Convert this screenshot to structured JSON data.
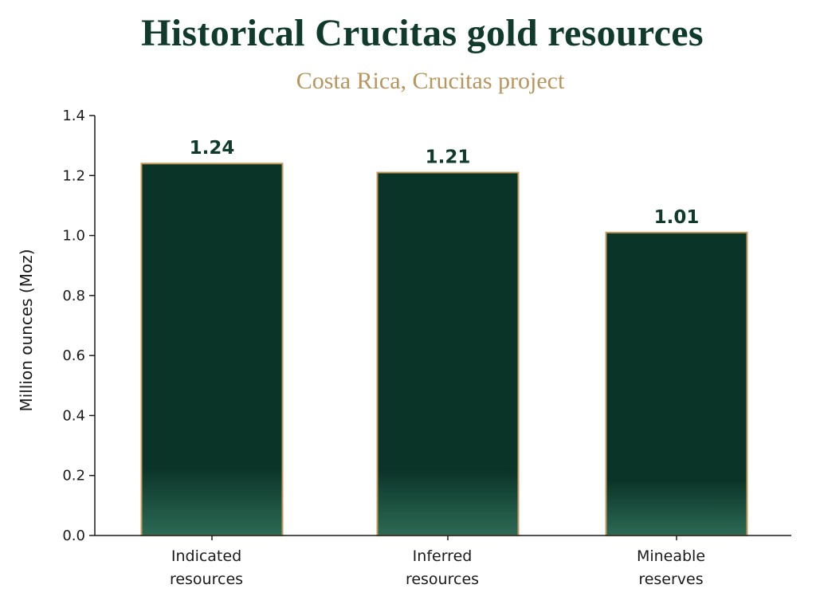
{
  "chart_data": {
    "type": "bar",
    "title": "Historical Crucitas gold resources",
    "subtitle": "Costa Rica, Crucitas project",
    "xlabel": "",
    "ylabel": "Million ounces (Moz)",
    "categories": [
      [
        "Indicated",
        "resources"
      ],
      [
        "Inferred",
        "resources"
      ],
      [
        "Mineable",
        "reserves"
      ]
    ],
    "values": [
      1.24,
      1.21,
      1.01
    ],
    "value_labels": [
      "1.24",
      "1.21",
      "1.01"
    ],
    "ylim": [
      0,
      1.4
    ],
    "yticks": [
      0.0,
      0.2,
      0.4,
      0.6,
      0.8,
      1.0,
      1.2,
      1.4
    ],
    "ytick_labels": [
      "0.0",
      "0.2",
      "0.4",
      "0.6",
      "0.8",
      "1.0",
      "1.2",
      "1.4"
    ],
    "grid": false,
    "legend": "none",
    "colors": {
      "bar_top": "#0b3428",
      "bar_bottom": "#2c6a55",
      "bar_border": "#c49a5a",
      "title": "#0f3a2c",
      "subtitle": "#b8955c",
      "axis": "#1a1a1a"
    }
  }
}
